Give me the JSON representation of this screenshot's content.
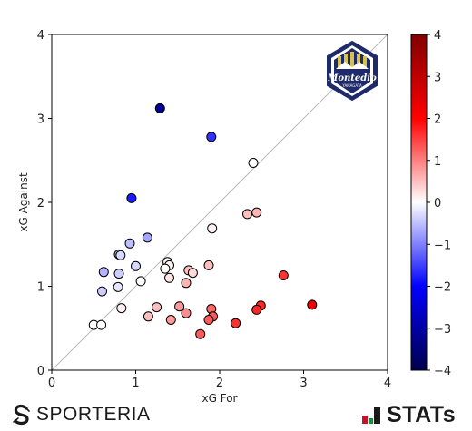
{
  "chart_data": {
    "type": "scatter",
    "xlabel": "xG For",
    "ylabel": "xG Against",
    "xlim": [
      0,
      4
    ],
    "ylim": [
      0,
      4
    ],
    "xticks": [
      0,
      1,
      2,
      3,
      4
    ],
    "yticks": [
      0,
      1,
      2,
      3,
      4
    ],
    "diagonal_reference_line": true,
    "grid": false,
    "color_scale": {
      "min": -4,
      "max": 4,
      "colormap": "seismic_reversed",
      "ticks": [
        4,
        3,
        2,
        1,
        0,
        -1,
        -2,
        -3,
        -4
      ],
      "tick_labels": [
        "4",
        "3",
        "2",
        "1",
        "0",
        "−1",
        "−2",
        "−3",
        "−4"
      ],
      "placement": "right"
    },
    "points": [
      {
        "x": 1.29,
        "y": 3.12,
        "c": -3.2
      },
      {
        "x": 1.9,
        "y": 2.78,
        "c": -1.6
      },
      {
        "x": 2.4,
        "y": 2.47,
        "c": 0.0
      },
      {
        "x": 0.95,
        "y": 2.05,
        "c": -1.8
      },
      {
        "x": 2.33,
        "y": 1.86,
        "c": 0.5
      },
      {
        "x": 2.44,
        "y": 1.88,
        "c": 0.6
      },
      {
        "x": 1.91,
        "y": 1.69,
        "c": 0.1
      },
      {
        "x": 1.14,
        "y": 1.58,
        "c": -0.7
      },
      {
        "x": 0.93,
        "y": 1.51,
        "c": -0.5
      },
      {
        "x": 0.8,
        "y": 1.38,
        "c": -0.6
      },
      {
        "x": 0.82,
        "y": 1.37,
        "c": -0.3
      },
      {
        "x": 1.38,
        "y": 1.29,
        "c": 0.0
      },
      {
        "x": 1.4,
        "y": 1.25,
        "c": 0.1
      },
      {
        "x": 1.35,
        "y": 1.21,
        "c": 0.0
      },
      {
        "x": 1.0,
        "y": 1.24,
        "c": -0.3
      },
      {
        "x": 1.87,
        "y": 1.25,
        "c": 0.5
      },
      {
        "x": 1.63,
        "y": 1.19,
        "c": 0.5
      },
      {
        "x": 1.68,
        "y": 1.16,
        "c": 0.3
      },
      {
        "x": 0.62,
        "y": 1.17,
        "c": -0.6
      },
      {
        "x": 0.8,
        "y": 1.15,
        "c": -0.4
      },
      {
        "x": 1.4,
        "y": 1.1,
        "c": 0.2
      },
      {
        "x": 1.6,
        "y": 1.04,
        "c": 0.6
      },
      {
        "x": 1.06,
        "y": 1.06,
        "c": 0.0
      },
      {
        "x": 0.79,
        "y": 0.99,
        "c": -0.2
      },
      {
        "x": 2.76,
        "y": 1.13,
        "c": 1.6
      },
      {
        "x": 0.6,
        "y": 0.94,
        "c": -0.4
      },
      {
        "x": 1.25,
        "y": 0.75,
        "c": 0.5
      },
      {
        "x": 0.83,
        "y": 0.74,
        "c": 0.1
      },
      {
        "x": 1.52,
        "y": 0.76,
        "c": 0.8
      },
      {
        "x": 1.9,
        "y": 0.73,
        "c": 1.2
      },
      {
        "x": 2.49,
        "y": 0.77,
        "c": 1.7
      },
      {
        "x": 2.44,
        "y": 0.72,
        "c": 1.7
      },
      {
        "x": 3.1,
        "y": 0.78,
        "c": 2.3
      },
      {
        "x": 1.15,
        "y": 0.64,
        "c": 0.5
      },
      {
        "x": 1.6,
        "y": 0.68,
        "c": 0.9
      },
      {
        "x": 1.92,
        "y": 0.64,
        "c": 1.3
      },
      {
        "x": 1.42,
        "y": 0.6,
        "c": 0.8
      },
      {
        "x": 1.87,
        "y": 0.6,
        "c": 1.3
      },
      {
        "x": 2.19,
        "y": 0.56,
        "c": 1.6
      },
      {
        "x": 0.5,
        "y": 0.54,
        "c": 0.0
      },
      {
        "x": 0.59,
        "y": 0.54,
        "c": 0.0
      },
      {
        "x": 1.77,
        "y": 0.43,
        "c": 1.3
      }
    ]
  },
  "team_logo": {
    "name": "Montedio",
    "subtitle": "YAMAGATA",
    "colors": {
      "navy": "#1f2a6b",
      "gold": "#d8c34a",
      "white": "#ffffff"
    }
  },
  "footer": {
    "left_brand": "SPORTERIA",
    "right_brand": "STATs",
    "right_brand_colors": {
      "red": "#c8102e",
      "green": "#1f8a3a",
      "dark": "#1a1a1a"
    }
  }
}
